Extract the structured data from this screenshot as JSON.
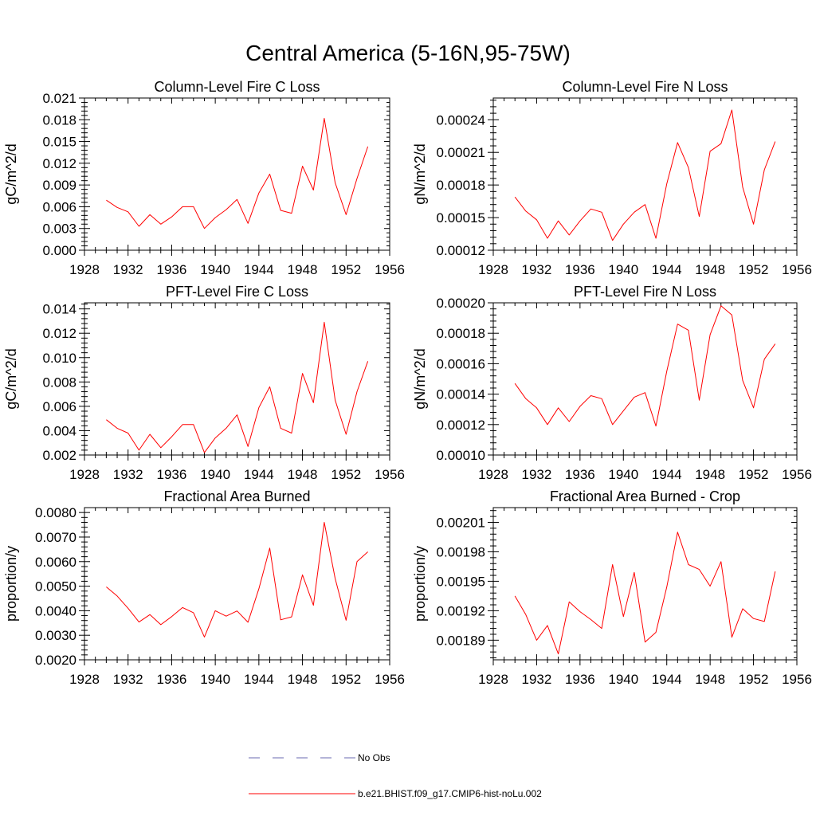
{
  "title": "Central America (5-16N,95-75W)",
  "legend": [
    {
      "label": "No Obs",
      "color": "#6a6ab0",
      "dash": "dashed"
    },
    {
      "label": "b.e21.BHIST.f09_g17.CMIP6-hist-noLu.002",
      "color": "#ff0000",
      "dash": "solid"
    }
  ],
  "chart_data": [
    {
      "type": "line",
      "title": "Column-Level Fire C Loss",
      "ylabel": "gC/m^2/d",
      "xlim": [
        1928,
        1956
      ],
      "xticks": [
        1928,
        1932,
        1936,
        1940,
        1944,
        1948,
        1952,
        1956
      ],
      "ylim": [
        0.0,
        0.021
      ],
      "yticks": [
        "0.000",
        "0.003",
        "0.006",
        "0.009",
        "0.012",
        "0.015",
        "0.018",
        "0.021"
      ],
      "x": [
        1930,
        1931,
        1932,
        1933,
        1934,
        1935,
        1936,
        1937,
        1938,
        1939,
        1940,
        1941,
        1942,
        1943,
        1944,
        1945,
        1946,
        1947,
        1948,
        1949,
        1950,
        1951,
        1952,
        1953,
        1954
      ],
      "series": [
        {
          "color": "#ff0000",
          "values": [
            0.0069,
            0.0059,
            0.0053,
            0.0033,
            0.0049,
            0.0036,
            0.0046,
            0.006,
            0.006,
            0.003,
            0.0045,
            0.0056,
            0.007,
            0.0037,
            0.0079,
            0.0105,
            0.0055,
            0.0051,
            0.0116,
            0.0083,
            0.0182,
            0.0093,
            0.0049,
            0.0099,
            0.0143
          ]
        }
      ]
    },
    {
      "type": "line",
      "title": "Column-Level Fire N Loss",
      "ylabel": "gN/m^2/d",
      "xlim": [
        1928,
        1956
      ],
      "xticks": [
        1928,
        1932,
        1936,
        1940,
        1944,
        1948,
        1952,
        1956
      ],
      "ylim": [
        0.00012,
        0.00026
      ],
      "yticks": [
        "0.00012",
        "0.00015",
        "0.00018",
        "0.00021",
        "0.00024"
      ],
      "x": [
        1930,
        1931,
        1932,
        1933,
        1934,
        1935,
        1936,
        1937,
        1938,
        1939,
        1940,
        1941,
        1942,
        1943,
        1944,
        1945,
        1946,
        1947,
        1948,
        1949,
        1950,
        1951,
        1952,
        1953,
        1954
      ],
      "series": [
        {
          "color": "#ff0000",
          "values": [
            0.000169,
            0.000156,
            0.000148,
            0.000131,
            0.000147,
            0.000134,
            0.000147,
            0.000158,
            0.000155,
            0.000129,
            0.000144,
            0.000155,
            0.000162,
            0.000131,
            0.000181,
            0.000219,
            0.000196,
            0.000151,
            0.000211,
            0.000218,
            0.000249,
            0.000178,
            0.000144,
            0.000194,
            0.00022
          ]
        }
      ]
    },
    {
      "type": "line",
      "title": "PFT-Level Fire C Loss",
      "ylabel": "gC/m^2/d",
      "xlim": [
        1928,
        1956
      ],
      "xticks": [
        1928,
        1932,
        1936,
        1940,
        1944,
        1948,
        1952,
        1956
      ],
      "ylim": [
        0.002,
        0.0145
      ],
      "yticks": [
        "0.002",
        "0.004",
        "0.006",
        "0.008",
        "0.010",
        "0.012",
        "0.014"
      ],
      "x": [
        1930,
        1931,
        1932,
        1933,
        1934,
        1935,
        1936,
        1937,
        1938,
        1939,
        1940,
        1941,
        1942,
        1943,
        1944,
        1945,
        1946,
        1947,
        1948,
        1949,
        1950,
        1951,
        1952,
        1953,
        1954
      ],
      "series": [
        {
          "color": "#ff0000",
          "values": [
            0.0049,
            0.0042,
            0.0038,
            0.0024,
            0.0037,
            0.0026,
            0.0035,
            0.0045,
            0.0045,
            0.0022,
            0.0034,
            0.0042,
            0.0053,
            0.0027,
            0.0059,
            0.0076,
            0.0042,
            0.0038,
            0.0087,
            0.0063,
            0.0129,
            0.0065,
            0.0037,
            0.0072,
            0.0097
          ]
        }
      ]
    },
    {
      "type": "line",
      "title": "PFT-Level Fire N Loss",
      "ylabel": "gN/m^2/d",
      "xlim": [
        1928,
        1956
      ],
      "xticks": [
        1928,
        1932,
        1936,
        1940,
        1944,
        1948,
        1952,
        1956
      ],
      "ylim": [
        0.0001,
        0.0002
      ],
      "yticks": [
        "0.00010",
        "0.00012",
        "0.00014",
        "0.00016",
        "0.00018",
        "0.00020"
      ],
      "x": [
        1930,
        1931,
        1932,
        1933,
        1934,
        1935,
        1936,
        1937,
        1938,
        1939,
        1940,
        1941,
        1942,
        1943,
        1944,
        1945,
        1946,
        1947,
        1948,
        1949,
        1950,
        1951,
        1952,
        1953,
        1954
      ],
      "series": [
        {
          "color": "#ff0000",
          "values": [
            0.000147,
            0.000137,
            0.000131,
            0.00012,
            0.000131,
            0.000122,
            0.000132,
            0.000139,
            0.000137,
            0.00012,
            0.000129,
            0.000138,
            0.000141,
            0.000119,
            0.000155,
            0.000186,
            0.000182,
            0.000136,
            0.000179,
            0.000198,
            0.000192,
            0.000149,
            0.000131,
            0.000163,
            0.000173
          ]
        }
      ]
    },
    {
      "type": "line",
      "title": "Fractional Area Burned",
      "ylabel": "proportion/y",
      "xlim": [
        1928,
        1956
      ],
      "xticks": [
        1928,
        1932,
        1936,
        1940,
        1944,
        1948,
        1952,
        1956
      ],
      "ylim": [
        0.002,
        0.0082
      ],
      "yticks": [
        "0.0020",
        "0.0030",
        "0.0040",
        "0.0050",
        "0.0060",
        "0.0070",
        "0.0080"
      ],
      "x": [
        1930,
        1931,
        1932,
        1933,
        1934,
        1935,
        1936,
        1937,
        1938,
        1939,
        1940,
        1941,
        1942,
        1943,
        1944,
        1945,
        1946,
        1947,
        1948,
        1949,
        1950,
        1951,
        1952,
        1953,
        1954
      ],
      "series": [
        {
          "color": "#ff0000",
          "values": [
            0.00497,
            0.0046,
            0.0041,
            0.00354,
            0.00384,
            0.00343,
            0.00376,
            0.00413,
            0.00392,
            0.00293,
            0.004,
            0.00378,
            0.00399,
            0.00353,
            0.0049,
            0.00655,
            0.00363,
            0.00375,
            0.00546,
            0.00422,
            0.0076,
            0.00531,
            0.00361,
            0.006,
            0.0064
          ]
        }
      ]
    },
    {
      "type": "line",
      "title": "Fractional Area Burned - Crop",
      "ylabel": "proportion/y",
      "xlim": [
        1928,
        1956
      ],
      "xticks": [
        1928,
        1932,
        1936,
        1940,
        1944,
        1948,
        1952,
        1956
      ],
      "ylim": [
        0.00187,
        0.002025
      ],
      "yticks": [
        "0.00189",
        "0.00192",
        "0.00195",
        "0.00198",
        "0.00201"
      ],
      "x": [
        1930,
        1931,
        1932,
        1933,
        1934,
        1935,
        1936,
        1937,
        1938,
        1939,
        1940,
        1941,
        1942,
        1943,
        1944,
        1945,
        1946,
        1947,
        1948,
        1949,
        1950,
        1951,
        1952,
        1953,
        1954
      ],
      "series": [
        {
          "color": "#ff0000",
          "values": [
            0.001935,
            0.001916,
            0.00189,
            0.001905,
            0.001876,
            0.001929,
            0.001919,
            0.001911,
            0.001902,
            0.001967,
            0.001914,
            0.001959,
            0.001888,
            0.001898,
            0.001944,
            0.002,
            0.001967,
            0.001962,
            0.001945,
            0.00197,
            0.001893,
            0.001922,
            0.001912,
            0.001909,
            0.00196
          ]
        }
      ]
    }
  ]
}
